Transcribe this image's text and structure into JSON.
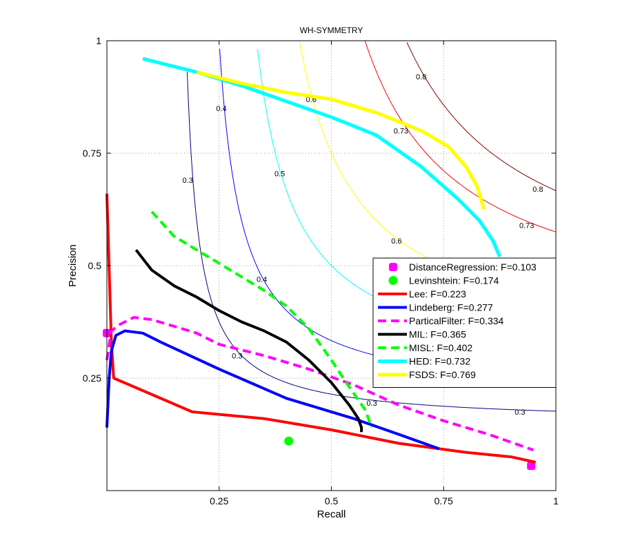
{
  "chart_data": {
    "type": "line",
    "title": "WH-SYMMETRY",
    "xlabel": "Recall",
    "ylabel": "Precision",
    "xlim": [
      0,
      1
    ],
    "ylim": [
      0,
      1
    ],
    "grid": true,
    "legend_position": "lower-right",
    "x_ticks": [
      0.25,
      0.5,
      0.75,
      1
    ],
    "x_tick_labels": [
      "0.25",
      "0.5",
      "0.75",
      "1"
    ],
    "y_ticks": [
      0.25,
      0.5,
      0.75,
      1
    ],
    "y_tick_labels": [
      "0.25",
      "0.5",
      "0.75",
      "1"
    ],
    "iso_f_contours": [
      {
        "f": 0.3,
        "color": "#000080",
        "labels": [
          "0.3",
          "0.3",
          "0.3",
          "0.3"
        ],
        "label_points": [
          [
            0.18,
            0.69
          ],
          [
            0.29,
            0.3
          ],
          [
            0.59,
            0.195
          ],
          [
            0.92,
            0.175
          ]
        ]
      },
      {
        "f": 0.4,
        "color": "#0000ff",
        "labels": [
          "0.4",
          "0.4"
        ],
        "label_points": [
          [
            0.255,
            0.85
          ],
          [
            0.345,
            0.47
          ]
        ]
      },
      {
        "f": 0.5,
        "color": "#00ffff",
        "labels": [
          "0.5"
        ],
        "label_points": [
          [
            0.385,
            0.705
          ]
        ]
      },
      {
        "f": 0.6,
        "color": "#ffff00",
        "labels": [
          "0.6",
          "0.6"
        ],
        "label_points": [
          [
            0.455,
            0.87
          ],
          [
            0.645,
            0.555
          ]
        ]
      },
      {
        "f": 0.73,
        "color": "#ff0000",
        "labels": [
          "0.73",
          "0.73"
        ],
        "label_points": [
          [
            0.655,
            0.8
          ],
          [
            0.935,
            0.59
          ]
        ]
      },
      {
        "f": 0.8,
        "color": "#800000",
        "labels": [
          "0.8",
          "0.8"
        ],
        "label_points": [
          [
            0.7,
            0.92
          ],
          [
            0.96,
            0.67
          ]
        ]
      }
    ],
    "series": [
      {
        "name": "DistanceRegression: F=0.103",
        "color": "#ff00ff",
        "style": "marker",
        "width": 0,
        "marker": "square",
        "points": [
          [
            0.0,
            0.35
          ],
          [
            0.945,
            0.055
          ]
        ]
      },
      {
        "name": "Levinshtein: F=0.174",
        "color": "#00ff00",
        "style": "marker",
        "width": 0,
        "marker": "circle",
        "points": [
          [
            0.405,
            0.11
          ]
        ]
      },
      {
        "name": "Lee: F=0.223",
        "color": "#ff0000",
        "style": "solid",
        "width": 4,
        "points": [
          [
            0.0,
            0.66
          ],
          [
            0.01,
            0.33
          ],
          [
            0.015,
            0.25
          ],
          [
            0.19,
            0.175
          ],
          [
            0.35,
            0.16
          ],
          [
            0.5,
            0.135
          ],
          [
            0.65,
            0.105
          ],
          [
            0.8,
            0.085
          ],
          [
            0.9,
            0.075
          ],
          [
            0.955,
            0.063
          ]
        ]
      },
      {
        "name": "Lindeberg: F=0.277",
        "color": "#0000ff",
        "style": "solid",
        "width": 4,
        "points": [
          [
            0.0,
            0.14
          ],
          [
            0.005,
            0.25
          ],
          [
            0.01,
            0.31
          ],
          [
            0.02,
            0.345
          ],
          [
            0.04,
            0.355
          ],
          [
            0.08,
            0.35
          ],
          [
            0.12,
            0.33
          ],
          [
            0.25,
            0.27
          ],
          [
            0.4,
            0.205
          ],
          [
            0.55,
            0.16
          ],
          [
            0.65,
            0.125
          ],
          [
            0.74,
            0.093
          ]
        ]
      },
      {
        "name": "ParticalFilter: F=0.334",
        "color": "#ff00ff",
        "style": "dashed",
        "width": 4,
        "points": [
          [
            0.0,
            0.29
          ],
          [
            0.01,
            0.355
          ],
          [
            0.03,
            0.37
          ],
          [
            0.06,
            0.385
          ],
          [
            0.1,
            0.38
          ],
          [
            0.15,
            0.365
          ],
          [
            0.2,
            0.35
          ],
          [
            0.25,
            0.325
          ],
          [
            0.35,
            0.3
          ],
          [
            0.45,
            0.27
          ],
          [
            0.55,
            0.235
          ],
          [
            0.65,
            0.19
          ],
          [
            0.75,
            0.155
          ],
          [
            0.85,
            0.125
          ],
          [
            0.95,
            0.09
          ]
        ]
      },
      {
        "name": "MIL: F=0.365",
        "color": "#000000",
        "style": "solid",
        "width": 4,
        "points": [
          [
            0.065,
            0.535
          ],
          [
            0.1,
            0.49
          ],
          [
            0.15,
            0.455
          ],
          [
            0.2,
            0.43
          ],
          [
            0.25,
            0.4
          ],
          [
            0.3,
            0.375
          ],
          [
            0.35,
            0.355
          ],
          [
            0.4,
            0.33
          ],
          [
            0.45,
            0.29
          ],
          [
            0.5,
            0.24
          ],
          [
            0.54,
            0.19
          ],
          [
            0.56,
            0.16
          ],
          [
            0.567,
            0.14
          ],
          [
            0.567,
            0.13
          ]
        ]
      },
      {
        "name": "MISL: F=0.402",
        "color": "#00ff00",
        "style": "dashed",
        "width": 4,
        "points": [
          [
            0.1,
            0.62
          ],
          [
            0.15,
            0.565
          ],
          [
            0.2,
            0.535
          ],
          [
            0.25,
            0.505
          ],
          [
            0.3,
            0.475
          ],
          [
            0.35,
            0.445
          ],
          [
            0.4,
            0.41
          ],
          [
            0.45,
            0.36
          ],
          [
            0.5,
            0.29
          ],
          [
            0.54,
            0.23
          ],
          [
            0.575,
            0.18
          ],
          [
            0.59,
            0.14
          ]
        ]
      },
      {
        "name": "HED: F=0.732",
        "color": "#00ffff",
        "style": "solid",
        "width": 5,
        "points": [
          [
            0.08,
            0.96
          ],
          [
            0.2,
            0.93
          ],
          [
            0.3,
            0.9
          ],
          [
            0.4,
            0.865
          ],
          [
            0.5,
            0.83
          ],
          [
            0.6,
            0.79
          ],
          [
            0.7,
            0.72
          ],
          [
            0.78,
            0.65
          ],
          [
            0.83,
            0.6
          ],
          [
            0.86,
            0.555
          ],
          [
            0.875,
            0.52
          ]
        ]
      },
      {
        "name": "FSDS: F=0.769",
        "color": "#ffff00",
        "style": "solid",
        "width": 5,
        "points": [
          [
            0.2,
            0.93
          ],
          [
            0.3,
            0.905
          ],
          [
            0.4,
            0.885
          ],
          [
            0.5,
            0.87
          ],
          [
            0.6,
            0.84
          ],
          [
            0.7,
            0.8
          ],
          [
            0.76,
            0.765
          ],
          [
            0.8,
            0.72
          ],
          [
            0.825,
            0.675
          ],
          [
            0.84,
            0.625
          ]
        ]
      }
    ]
  }
}
